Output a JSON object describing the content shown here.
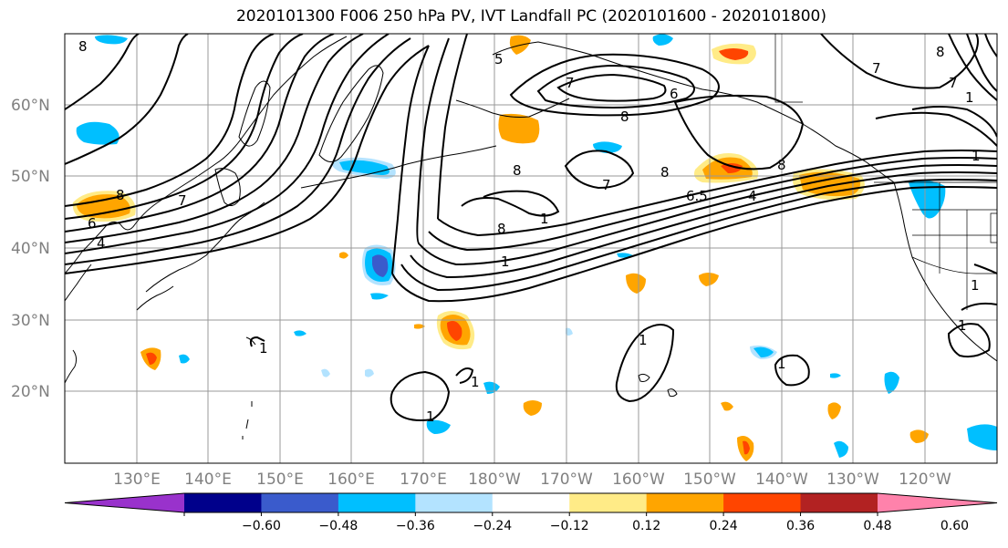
{
  "title": "2020101300 F006 250 hPa PV, IVT Landfall PC (2020101600 - 2020101800)",
  "lat_labels": [
    "60°N",
    "50°N",
    "40°N",
    "30°N",
    "20°N"
  ],
  "lon_labels": [
    "130°E",
    "140°E",
    "150°E",
    "160°E",
    "170°E",
    "180°W",
    "170°W",
    "160°W",
    "150°W",
    "140°W",
    "130°W",
    "120°W"
  ],
  "colorbar": {
    "colors": [
      "#9932cc",
      "#00008b",
      "#3a5bcc",
      "#00bfff",
      "#b3e3ff",
      "#ffffff",
      "#ffeb87",
      "#ffa500",
      "#ff4500",
      "#b22222",
      "#ff82ab"
    ],
    "tick_labels": [
      "−0.60",
      "−0.48",
      "−0.36",
      "−0.24",
      "−0.12",
      "0.12",
      "0.24",
      "0.36",
      "0.48",
      "0.60"
    ]
  },
  "contour_labels": [
    "8",
    "6",
    "4",
    "8",
    "7",
    "1",
    "7",
    "6",
    "8",
    "5",
    "8",
    "7",
    "8",
    "8",
    "1",
    "6.5",
    "4",
    "8",
    "7",
    "1",
    "1",
    "1",
    "1",
    "1",
    "1",
    "1",
    "7",
    "8",
    "1",
    "1"
  ],
  "colors": {
    "gridline": "#999999",
    "contour": "#000000",
    "axis_label": "#808080"
  }
}
